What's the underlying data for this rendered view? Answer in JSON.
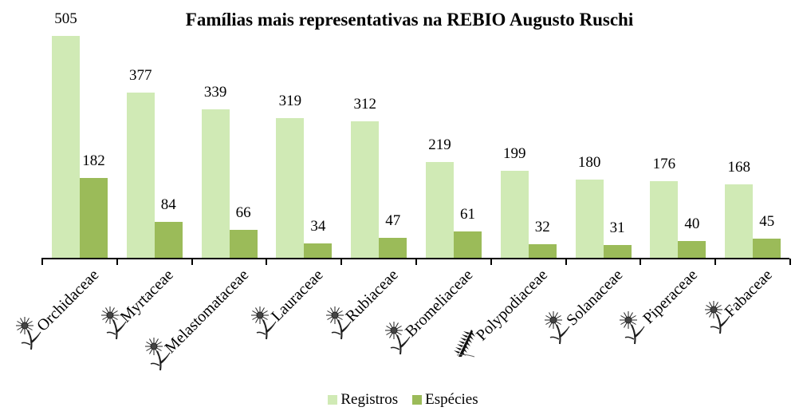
{
  "chart_data": {
    "type": "bar",
    "title": "Famílias mais representativas na REBIO Augusto Ruschi",
    "xlabel": "",
    "ylabel": "",
    "categories": [
      "Orchidaceae",
      "Myrtaceae",
      "Melastomataceae",
      "Lauraceae",
      "Rubiaceae",
      "Bromeliaceae",
      "Polypodiaceae",
      "Solanaceae",
      "Piperaceae",
      "Fabaceae"
    ],
    "series": [
      {
        "name": "Registros",
        "color": "#d0eab5",
        "values": [
          505,
          377,
          339,
          319,
          312,
          219,
          199,
          180,
          176,
          168
        ]
      },
      {
        "name": "Espécies",
        "color": "#9bbb59",
        "values": [
          182,
          84,
          66,
          34,
          47,
          61,
          32,
          31,
          40,
          45
        ]
      }
    ],
    "category_icons": [
      "flower-icon",
      "flower-icon",
      "flower-icon",
      "flower-icon",
      "flower-icon",
      "flower-icon",
      "fern-icon",
      "flower-icon",
      "flower-icon",
      "flower-icon"
    ],
    "data_labels": true,
    "grid": false,
    "legend_position": "bottom",
    "ylim": [
      0,
      505
    ]
  },
  "legend": {
    "items": [
      {
        "label": "Registros",
        "color": "#d0eab5"
      },
      {
        "label": "Espécies",
        "color": "#9bbb59"
      }
    ]
  }
}
